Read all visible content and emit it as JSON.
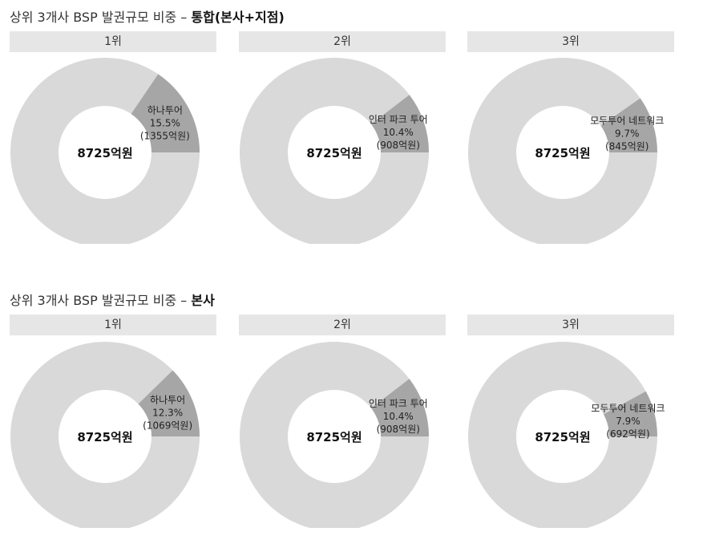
{
  "sections": [
    {
      "title_prefix": "상위 3개사 BSP 발권규모 비중 – ",
      "title_bold": "통합(본사+지점)",
      "charts": [
        {
          "rank": "1위",
          "center": "8725억원",
          "company": "하나투어",
          "pct_label": "15.5%",
          "amount_label": "(1355억원)"
        },
        {
          "rank": "2위",
          "center": "8725억원",
          "company": "인터 파크 투어",
          "pct_label": "10.4%",
          "amount_label": "(908억원)"
        },
        {
          "rank": "3위",
          "center": "8725억원",
          "company": "모두투어 네트워크",
          "pct_label": "9.7%",
          "amount_label": "(845억원)"
        }
      ]
    },
    {
      "title_prefix": "상위 3개사 BSP 발권규모 비중 – ",
      "title_bold": "본사",
      "charts": [
        {
          "rank": "1위",
          "center": "8725억원",
          "company": "하나투어",
          "pct_label": "12.3%",
          "amount_label": "(1069억원)"
        },
        {
          "rank": "2위",
          "center": "8725억원",
          "company": "인터 파크 투어",
          "pct_label": "10.4%",
          "amount_label": "(908억원)"
        },
        {
          "rank": "3위",
          "center": "8725억원",
          "company": "모두투어 네트워크",
          "pct_label": "7.9%",
          "amount_label": "(692억원)"
        }
      ]
    }
  ],
  "colors": {
    "remainder": "#d9d9d9",
    "highlight": "#a6a6a6",
    "hole": "#ffffff"
  },
  "chart_data": [
    {
      "type": "pie",
      "title": "상위 3개사 BSP 발권규모 비중 – 통합(본사+지점) 1위",
      "total": "8725억원",
      "slices": [
        {
          "label": "하나투어",
          "value": 15.5,
          "amount": 1355
        },
        {
          "label": "",
          "value": 84.5
        }
      ]
    },
    {
      "type": "pie",
      "title": "상위 3개사 BSP 발권규모 비중 – 통합(본사+지점) 2위",
      "total": "8725억원",
      "slices": [
        {
          "label": "인터 파크 투어",
          "value": 10.4,
          "amount": 908
        },
        {
          "label": "",
          "value": 89.6
        }
      ]
    },
    {
      "type": "pie",
      "title": "상위 3개사 BSP 발권규모 비중 – 통합(본사+지점) 3위",
      "total": "8725억원",
      "slices": [
        {
          "label": "모두투어 네트워크",
          "value": 9.7,
          "amount": 845
        },
        {
          "label": "",
          "value": 90.3
        }
      ]
    },
    {
      "type": "pie",
      "title": "상위 3개사 BSP 발권규모 비중 – 본사 1위",
      "total": "8725억원",
      "slices": [
        {
          "label": "하나투어",
          "value": 12.3,
          "amount": 1069
        },
        {
          "label": "",
          "value": 87.7
        }
      ]
    },
    {
      "type": "pie",
      "title": "상위 3개사 BSP 발권규모 비중 – 본사 2위",
      "total": "8725억원",
      "slices": [
        {
          "label": "인터 파크 투어",
          "value": 10.4,
          "amount": 908
        },
        {
          "label": "",
          "value": 89.6
        }
      ]
    },
    {
      "type": "pie",
      "title": "상위 3개사 BSP 발권규모 비중 – 본사 3위",
      "total": "8725억원",
      "slices": [
        {
          "label": "모두투어 네트워크",
          "value": 7.9,
          "amount": 692
        },
        {
          "label": "",
          "value": 92.1
        }
      ]
    }
  ]
}
